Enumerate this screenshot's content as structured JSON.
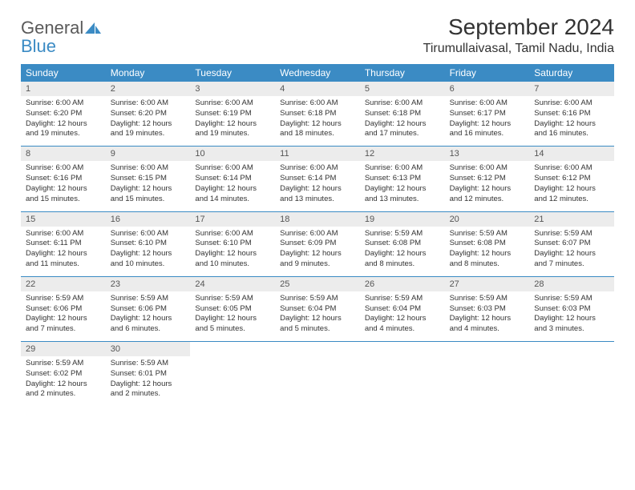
{
  "brand": {
    "word1": "General",
    "word2": "Blue"
  },
  "title": "September 2024",
  "location": "Tirumullaivasal, Tamil Nadu, India",
  "colors": {
    "header_bg": "#3b8bc4",
    "daynum_bg": "#ececec",
    "text": "#333333",
    "logo_gray": "#5a5a5a",
    "logo_blue": "#3b8bc4"
  },
  "dow": [
    "Sunday",
    "Monday",
    "Tuesday",
    "Wednesday",
    "Thursday",
    "Friday",
    "Saturday"
  ],
  "days": [
    {
      "n": "1",
      "sr": "6:00 AM",
      "ss": "6:20 PM",
      "dl": "12 hours and 19 minutes."
    },
    {
      "n": "2",
      "sr": "6:00 AM",
      "ss": "6:20 PM",
      "dl": "12 hours and 19 minutes."
    },
    {
      "n": "3",
      "sr": "6:00 AM",
      "ss": "6:19 PM",
      "dl": "12 hours and 19 minutes."
    },
    {
      "n": "4",
      "sr": "6:00 AM",
      "ss": "6:18 PM",
      "dl": "12 hours and 18 minutes."
    },
    {
      "n": "5",
      "sr": "6:00 AM",
      "ss": "6:18 PM",
      "dl": "12 hours and 17 minutes."
    },
    {
      "n": "6",
      "sr": "6:00 AM",
      "ss": "6:17 PM",
      "dl": "12 hours and 16 minutes."
    },
    {
      "n": "7",
      "sr": "6:00 AM",
      "ss": "6:16 PM",
      "dl": "12 hours and 16 minutes."
    },
    {
      "n": "8",
      "sr": "6:00 AM",
      "ss": "6:16 PM",
      "dl": "12 hours and 15 minutes."
    },
    {
      "n": "9",
      "sr": "6:00 AM",
      "ss": "6:15 PM",
      "dl": "12 hours and 15 minutes."
    },
    {
      "n": "10",
      "sr": "6:00 AM",
      "ss": "6:14 PM",
      "dl": "12 hours and 14 minutes."
    },
    {
      "n": "11",
      "sr": "6:00 AM",
      "ss": "6:14 PM",
      "dl": "12 hours and 13 minutes."
    },
    {
      "n": "12",
      "sr": "6:00 AM",
      "ss": "6:13 PM",
      "dl": "12 hours and 13 minutes."
    },
    {
      "n": "13",
      "sr": "6:00 AM",
      "ss": "6:12 PM",
      "dl": "12 hours and 12 minutes."
    },
    {
      "n": "14",
      "sr": "6:00 AM",
      "ss": "6:12 PM",
      "dl": "12 hours and 12 minutes."
    },
    {
      "n": "15",
      "sr": "6:00 AM",
      "ss": "6:11 PM",
      "dl": "12 hours and 11 minutes."
    },
    {
      "n": "16",
      "sr": "6:00 AM",
      "ss": "6:10 PM",
      "dl": "12 hours and 10 minutes."
    },
    {
      "n": "17",
      "sr": "6:00 AM",
      "ss": "6:10 PM",
      "dl": "12 hours and 10 minutes."
    },
    {
      "n": "18",
      "sr": "6:00 AM",
      "ss": "6:09 PM",
      "dl": "12 hours and 9 minutes."
    },
    {
      "n": "19",
      "sr": "5:59 AM",
      "ss": "6:08 PM",
      "dl": "12 hours and 8 minutes."
    },
    {
      "n": "20",
      "sr": "5:59 AM",
      "ss": "6:08 PM",
      "dl": "12 hours and 8 minutes."
    },
    {
      "n": "21",
      "sr": "5:59 AM",
      "ss": "6:07 PM",
      "dl": "12 hours and 7 minutes."
    },
    {
      "n": "22",
      "sr": "5:59 AM",
      "ss": "6:06 PM",
      "dl": "12 hours and 7 minutes."
    },
    {
      "n": "23",
      "sr": "5:59 AM",
      "ss": "6:06 PM",
      "dl": "12 hours and 6 minutes."
    },
    {
      "n": "24",
      "sr": "5:59 AM",
      "ss": "6:05 PM",
      "dl": "12 hours and 5 minutes."
    },
    {
      "n": "25",
      "sr": "5:59 AM",
      "ss": "6:04 PM",
      "dl": "12 hours and 5 minutes."
    },
    {
      "n": "26",
      "sr": "5:59 AM",
      "ss": "6:04 PM",
      "dl": "12 hours and 4 minutes."
    },
    {
      "n": "27",
      "sr": "5:59 AM",
      "ss": "6:03 PM",
      "dl": "12 hours and 4 minutes."
    },
    {
      "n": "28",
      "sr": "5:59 AM",
      "ss": "6:03 PM",
      "dl": "12 hours and 3 minutes."
    },
    {
      "n": "29",
      "sr": "5:59 AM",
      "ss": "6:02 PM",
      "dl": "12 hours and 2 minutes."
    },
    {
      "n": "30",
      "sr": "5:59 AM",
      "ss": "6:01 PM",
      "dl": "12 hours and 2 minutes."
    }
  ],
  "labels": {
    "sunrise": "Sunrise:",
    "sunset": "Sunset:",
    "daylight": "Daylight:"
  },
  "layout": {
    "cols": 7,
    "rows": 5,
    "trailing_empty": 5
  }
}
